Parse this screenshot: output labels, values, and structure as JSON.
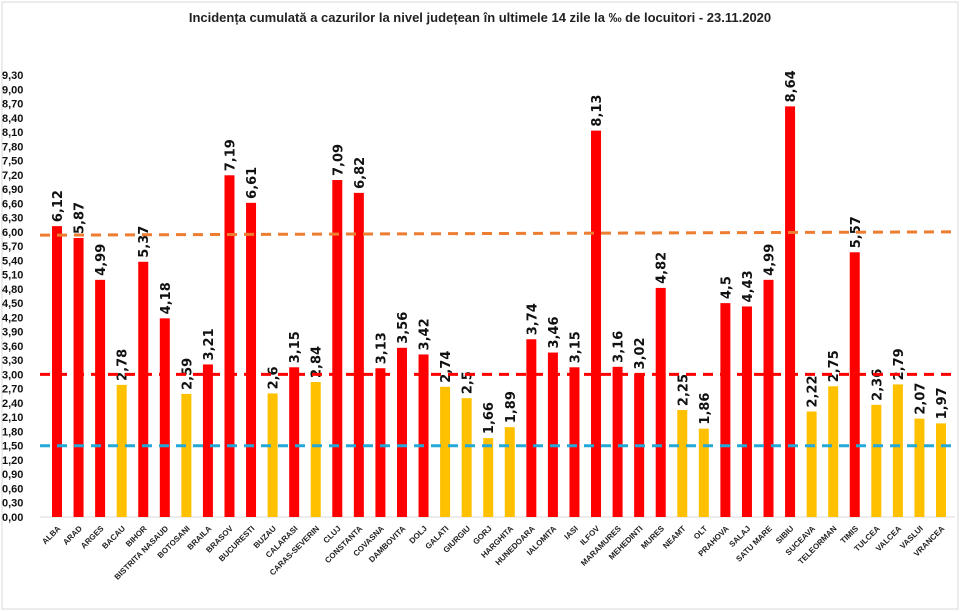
{
  "chart_data": {
    "type": "bar",
    "title": "Incidența cumulată a cazurilor la nivel județean în ultimele 14 zile la ‰ de locuitori - 23.11.2020",
    "xlabel": "",
    "ylabel": "",
    "ylim": [
      0,
      9.3
    ],
    "ytick_step": 0.3,
    "decimal_separator": ",",
    "grid": false,
    "legend": "none",
    "colors": {
      "above_threshold": "#ff0000",
      "below_threshold": "#ffc000"
    },
    "reference_lines": [
      {
        "value": 6.0,
        "color": "#ed7d31",
        "style": "dashed"
      },
      {
        "value": 3.0,
        "color": "#ff0000",
        "style": "dashed"
      },
      {
        "value": 1.5,
        "color": "#23a8d8",
        "style": "dashed"
      }
    ],
    "categories": [
      "ALBA",
      "ARAD",
      "ARGES",
      "BACAU",
      "BIHOR",
      "BISTRITA NASAUD",
      "BOTOSANI",
      "BRAILA",
      "BRASOV",
      "BUCURESTI",
      "BUZAU",
      "CALARASI",
      "CARAS-SEVERIN",
      "CLUJ",
      "CONSTANTA",
      "COVASNA",
      "DAMBOVITA",
      "DOLJ",
      "GALATI",
      "GIURGIU",
      "GORJ",
      "HARGHITA",
      "HUNEDOARA",
      "IALOMITA",
      "IASI",
      "ILFOV",
      "MARAMURES",
      "MEHEDINTI",
      "MURES",
      "NEAMT",
      "OLT",
      "PRAHOVA",
      "SALAJ",
      "SATU MARE",
      "SIBIU",
      "SUCEAVA",
      "TELEORMAN",
      "TIMIS",
      "TULCEA",
      "VALCEA",
      "VASLUI",
      "VRANCEA"
    ],
    "values": [
      6.12,
      5.87,
      4.99,
      2.78,
      5.37,
      4.18,
      2.59,
      3.21,
      7.19,
      6.61,
      2.6,
      3.15,
      2.84,
      7.09,
      6.82,
      3.13,
      3.56,
      3.42,
      2.74,
      2.5,
      1.66,
      1.89,
      3.74,
      3.46,
      3.15,
      8.13,
      3.16,
      3.02,
      4.82,
      2.25,
      1.86,
      4.5,
      4.43,
      4.99,
      8.64,
      2.22,
      2.75,
      5.57,
      2.36,
      2.79,
      2.07,
      1.97
    ]
  }
}
